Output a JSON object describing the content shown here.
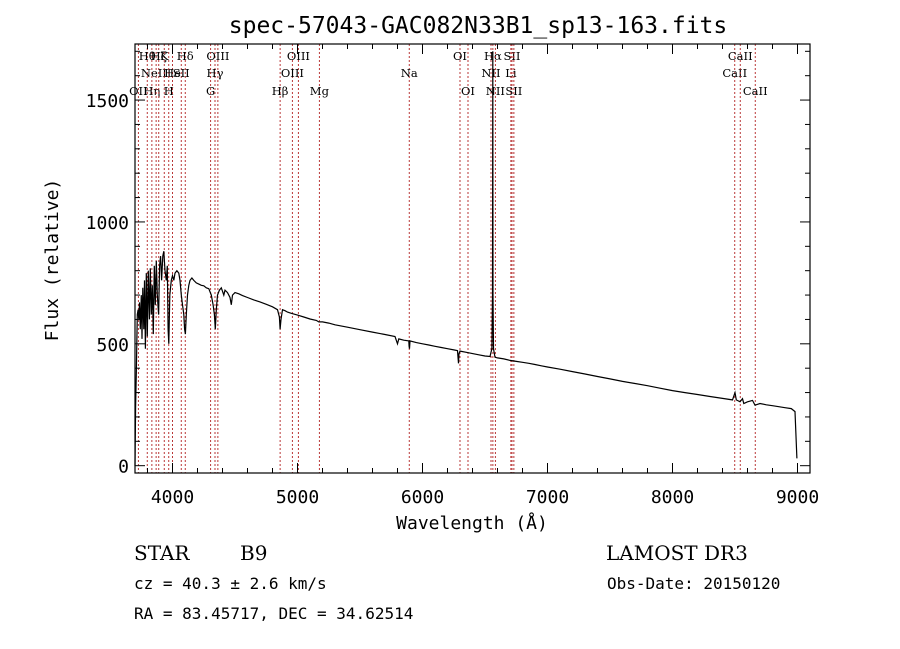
{
  "chart_data": {
    "type": "line",
    "title": "spec-57043-GAC082N33B1_sp13-163.fits",
    "xlabel": "Wavelength (Å)",
    "ylabel": "Flux (relative)",
    "xlim": [
      3700,
      9100
    ],
    "ylim": [
      -30,
      1730
    ],
    "x_ticks": [
      4000,
      5000,
      6000,
      7000,
      8000,
      9000
    ],
    "y_ticks": [
      0,
      500,
      1000,
      1500
    ],
    "x_tick_labels": [
      "4000",
      "5000",
      "6000",
      "7000",
      "8000",
      "9000"
    ],
    "y_tick_labels": [
      "0",
      "500",
      "1000",
      "1500"
    ],
    "spectrum": {
      "color": "#000000",
      "points": [
        [
          3700,
          0
        ],
        [
          3705,
          240
        ],
        [
          3710,
          380
        ],
        [
          3718,
          620
        ],
        [
          3725,
          640
        ],
        [
          3730,
          600
        ],
        [
          3736,
          670
        ],
        [
          3742,
          560
        ],
        [
          3750,
          700
        ],
        [
          3756,
          520
        ],
        [
          3762,
          730
        ],
        [
          3770,
          560
        ],
        [
          3776,
          760
        ],
        [
          3783,
          480
        ],
        [
          3790,
          790
        ],
        [
          3798,
          530
        ],
        [
          3806,
          800
        ],
        [
          3815,
          600
        ],
        [
          3822,
          810
        ],
        [
          3830,
          620
        ],
        [
          3838,
          740
        ],
        [
          3846,
          540
        ],
        [
          3854,
          820
        ],
        [
          3862,
          660
        ],
        [
          3870,
          840
        ],
        [
          3878,
          700
        ],
        [
          3889,
          620
        ],
        [
          3897,
          820
        ],
        [
          3905,
          860
        ],
        [
          3913,
          760
        ],
        [
          3922,
          860
        ],
        [
          3930,
          880
        ],
        [
          3940,
          800
        ],
        [
          3950,
          760
        ],
        [
          3958,
          820
        ],
        [
          3965,
          560
        ],
        [
          3970,
          500
        ],
        [
          3978,
          700
        ],
        [
          3990,
          760
        ],
        [
          4000,
          780
        ],
        [
          4010,
          760
        ],
        [
          4020,
          790
        ],
        [
          4035,
          800
        ],
        [
          4050,
          790
        ],
        [
          4060,
          760
        ],
        [
          4070,
          700
        ],
        [
          4080,
          660
        ],
        [
          4090,
          620
        ],
        [
          4097,
          560
        ],
        [
          4103,
          540
        ],
        [
          4110,
          620
        ],
        [
          4120,
          700
        ],
        [
          4130,
          740
        ],
        [
          4140,
          760
        ],
        [
          4155,
          770
        ],
        [
          4170,
          760
        ],
        [
          4190,
          750
        ],
        [
          4210,
          745
        ],
        [
          4230,
          740
        ],
        [
          4250,
          738
        ],
        [
          4270,
          730
        ],
        [
          4290,
          726
        ],
        [
          4310,
          700
        ],
        [
          4325,
          660
        ],
        [
          4335,
          620
        ],
        [
          4342,
          560
        ],
        [
          4350,
          640
        ],
        [
          4360,
          700
        ],
        [
          4375,
          720
        ],
        [
          4390,
          730
        ],
        [
          4410,
          700
        ],
        [
          4420,
          720
        ],
        [
          4440,
          710
        ],
        [
          4460,
          690
        ],
        [
          4470,
          660
        ],
        [
          4480,
          700
        ],
        [
          4500,
          710
        ],
        [
          4530,
          705
        ],
        [
          4560,
          698
        ],
        [
          4600,
          690
        ],
        [
          4650,
          680
        ],
        [
          4700,
          672
        ],
        [
          4750,
          662
        ],
        [
          4800,
          652
        ],
        [
          4840,
          640
        ],
        [
          4855,
          610
        ],
        [
          4861,
          560
        ],
        [
          4868,
          600
        ],
        [
          4880,
          640
        ],
        [
          4900,
          636
        ],
        [
          4920,
          630
        ],
        [
          4950,
          625
        ],
        [
          5000,
          618
        ],
        [
          5050,
          610
        ],
        [
          5100,
          602
        ],
        [
          5150,
          596
        ],
        [
          5170,
          590
        ],
        [
          5200,
          590
        ],
        [
          5250,
          585
        ],
        [
          5300,
          578
        ],
        [
          5400,
          568
        ],
        [
          5500,
          558
        ],
        [
          5600,
          548
        ],
        [
          5700,
          538
        ],
        [
          5780,
          530
        ],
        [
          5800,
          500
        ],
        [
          5810,
          520
        ],
        [
          5850,
          515
        ],
        [
          5890,
          512
        ],
        [
          5893,
          490
        ],
        [
          5896,
          480
        ],
        [
          5900,
          512
        ],
        [
          5950,
          505
        ],
        [
          6000,
          500
        ],
        [
          6050,
          495
        ],
        [
          6100,
          490
        ],
        [
          6150,
          485
        ],
        [
          6200,
          480
        ],
        [
          6250,
          475
        ],
        [
          6280,
          472
        ],
        [
          6285,
          440
        ],
        [
          6288,
          420
        ],
        [
          6292,
          460
        ],
        [
          6300,
          470
        ],
        [
          6350,
          465
        ],
        [
          6400,
          460
        ],
        [
          6450,
          455
        ],
        [
          6500,
          450
        ],
        [
          6540,
          448
        ],
        [
          6555,
          480
        ],
        [
          6560,
          700
        ],
        [
          6562,
          1700
        ],
        [
          6564,
          700
        ],
        [
          6568,
          480
        ],
        [
          6580,
          445
        ],
        [
          6600,
          442
        ],
        [
          6650,
          438
        ],
        [
          6700,
          432
        ],
        [
          6750,
          428
        ],
        [
          6800,
          424
        ],
        [
          6850,
          420
        ],
        [
          6900,
          415
        ],
        [
          6950,
          410
        ],
        [
          7000,
          405
        ],
        [
          7100,
          396
        ],
        [
          7200,
          386
        ],
        [
          7300,
          376
        ],
        [
          7400,
          366
        ],
        [
          7500,
          356
        ],
        [
          7600,
          346
        ],
        [
          7700,
          337
        ],
        [
          7800,
          328
        ],
        [
          7900,
          318
        ],
        [
          8000,
          308
        ],
        [
          8100,
          300
        ],
        [
          8200,
          292
        ],
        [
          8300,
          284
        ],
        [
          8400,
          276
        ],
        [
          8480,
          270
        ],
        [
          8500,
          300
        ],
        [
          8510,
          270
        ],
        [
          8540,
          262
        ],
        [
          8560,
          275
        ],
        [
          8570,
          255
        ],
        [
          8600,
          262
        ],
        [
          8640,
          268
        ],
        [
          8660,
          248
        ],
        [
          8700,
          255
        ],
        [
          8750,
          250
        ],
        [
          8800,
          246
        ],
        [
          8850,
          242
        ],
        [
          8900,
          238
        ],
        [
          8950,
          234
        ],
        [
          8980,
          222
        ],
        [
          8995,
          30
        ]
      ]
    },
    "emission_lines": [
      {
        "x": 3727,
        "row": 2,
        "label": "OII"
      },
      {
        "x": 3798,
        "row": 0,
        "label": "Hθ"
      },
      {
        "x": 3835,
        "row": 2,
        "label": "Hη"
      },
      {
        "x": 3869,
        "row": 1,
        "label": "NeIII"
      },
      {
        "x": 4102,
        "row": 0,
        "label": "Hδ"
      },
      {
        "x": 4340,
        "row": 1,
        "label": "Hγ"
      },
      {
        "x": 4363,
        "row": 0,
        "label": "OIII"
      },
      {
        "x": 4861,
        "row": 2,
        "label": "Hβ"
      },
      {
        "x": 4959,
        "row": 1,
        "label": "OIII"
      },
      {
        "x": 5007,
        "row": 0,
        "label": "OIII"
      },
      {
        "x": 6300,
        "row": 0,
        "label": "OI"
      },
      {
        "x": 6364,
        "row": 2,
        "label": "OI"
      },
      {
        "x": 6548,
        "row": 1,
        "label": "NII"
      },
      {
        "x": 6563,
        "row": 0,
        "label": "Hα"
      },
      {
        "x": 6583,
        "row": 2,
        "label": "NII"
      },
      {
        "x": 6707,
        "row": 1,
        "label": "Li"
      },
      {
        "x": 6716,
        "row": 0,
        "label": "SII"
      },
      {
        "x": 6731,
        "row": 2,
        "label": "SII"
      }
    ],
    "absorption_lines": [
      {
        "x": 3890,
        "row": 0,
        "label": "Hζ"
      },
      {
        "x": 3934,
        "row": 0,
        "label": "K"
      },
      {
        "x": 3970,
        "row": 2,
        "label": "H"
      },
      {
        "x": 4000,
        "row": 1,
        "label": "He"
      },
      {
        "x": 4070,
        "row": 1,
        "label": "SII"
      },
      {
        "x": 4305,
        "row": 2,
        "label": "G"
      },
      {
        "x": 5175,
        "row": 2,
        "label": "Mg"
      },
      {
        "x": 5894,
        "row": 1,
        "label": "Na"
      },
      {
        "x": 8498,
        "row": 1,
        "label": "CaII"
      },
      {
        "x": 8542,
        "row": 0,
        "label": "CaII"
      },
      {
        "x": 8662,
        "row": 2,
        "label": "CaII"
      }
    ]
  },
  "info": {
    "object_class": "STAR",
    "subclass": "B9",
    "redshift": "cz = 40.3 ± 2.6 km/s",
    "coords": "RA =  83.45717, DEC =  34.62514",
    "survey": "LAMOST DR3",
    "obs_date": "Obs-Date: 20150120"
  },
  "colors": {
    "line_marker": "#b22222",
    "spectrum": "#000000"
  }
}
